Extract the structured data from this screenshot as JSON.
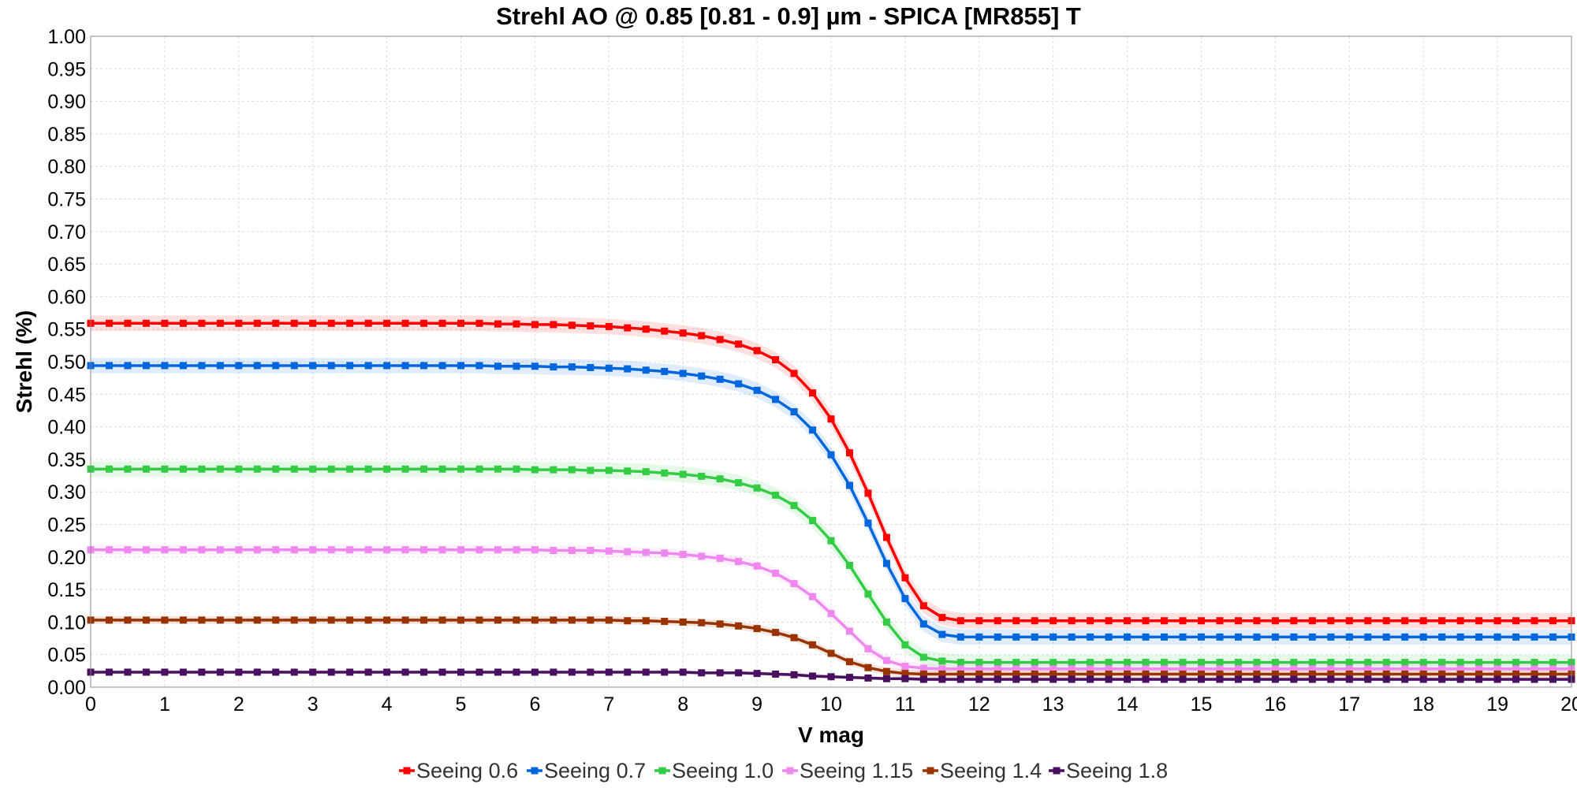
{
  "chart_data": {
    "type": "line",
    "title": "Strehl AO @ 0.85 [0.81 - 0.9] µm - SPICA [MR855] T",
    "xlabel": "V mag",
    "ylabel": "Strehl (%)",
    "xlim": [
      0,
      20
    ],
    "ylim": [
      0,
      1
    ],
    "x_ticks": [
      "0",
      "1",
      "2",
      "3",
      "4",
      "5",
      "6",
      "7",
      "8",
      "9",
      "10",
      "11",
      "12",
      "13",
      "14",
      "15",
      "16",
      "17",
      "18",
      "19",
      "20"
    ],
    "y_ticks": [
      "0.00",
      "0.05",
      "0.10",
      "0.15",
      "0.20",
      "0.25",
      "0.30",
      "0.35",
      "0.40",
      "0.45",
      "0.50",
      "0.55",
      "0.60",
      "0.65",
      "0.70",
      "0.75",
      "0.80",
      "0.85",
      "0.90",
      "0.95",
      "1.00"
    ],
    "grid": true,
    "legend_position": "bottom",
    "x": [
      0,
      0.25,
      0.5,
      0.75,
      1,
      1.25,
      1.5,
      1.75,
      2,
      2.25,
      2.5,
      2.75,
      3,
      3.25,
      3.5,
      3.75,
      4,
      4.25,
      4.5,
      4.75,
      5,
      5.25,
      5.5,
      5.75,
      6,
      6.25,
      6.5,
      6.75,
      7,
      7.25,
      7.5,
      7.75,
      8,
      8.25,
      8.5,
      8.75,
      9,
      9.25,
      9.5,
      9.75,
      10,
      10.25,
      10.5,
      10.75,
      11,
      11.25,
      11.5,
      11.75,
      12,
      12.25,
      12.5,
      12.75,
      13,
      13.25,
      13.5,
      13.75,
      14,
      14.25,
      14.5,
      14.75,
      15,
      15.25,
      15.5,
      15.75,
      16,
      16.25,
      16.5,
      16.75,
      17,
      17.25,
      17.5,
      17.75,
      18,
      18.25,
      18.5,
      18.75,
      19,
      19.25,
      19.5,
      19.75,
      20
    ],
    "series": [
      {
        "name": "Seeing 0.6",
        "color": "#ff0000",
        "band": 0.012,
        "flat": 0.559,
        "floor": 0.102,
        "knee": 10.5,
        "width": 0.33,
        "values": [
          0.559,
          0.559,
          0.559,
          0.559,
          0.559,
          0.559,
          0.559,
          0.559,
          0.559,
          0.559,
          0.559,
          0.559,
          0.559,
          0.559,
          0.559,
          0.559,
          0.559,
          0.559,
          0.559,
          0.559,
          0.559,
          0.559,
          0.558,
          0.558,
          0.557,
          0.557,
          0.556,
          0.555,
          0.554,
          0.552,
          0.55,
          0.547,
          0.544,
          0.54,
          0.534,
          0.527,
          0.517,
          0.503,
          0.482,
          0.452,
          0.412,
          0.36,
          0.298,
          0.23,
          0.168,
          0.125,
          0.107,
          0.102,
          0.102,
          0.102,
          0.102,
          0.102,
          0.102,
          0.102,
          0.102,
          0.102,
          0.102,
          0.102,
          0.102,
          0.102,
          0.102,
          0.102,
          0.102,
          0.102,
          0.102,
          0.102,
          0.102,
          0.102,
          0.102,
          0.102,
          0.102,
          0.102,
          0.102,
          0.102,
          0.102,
          0.102,
          0.102,
          0.102,
          0.102,
          0.102,
          0.102
        ]
      },
      {
        "name": "Seeing 0.7",
        "color": "#0066dd",
        "band": 0.012,
        "flat": 0.494,
        "floor": 0.077,
        "knee": 10.35,
        "width": 0.33,
        "values": [
          0.494,
          0.494,
          0.494,
          0.494,
          0.494,
          0.494,
          0.494,
          0.494,
          0.494,
          0.494,
          0.494,
          0.494,
          0.494,
          0.494,
          0.494,
          0.494,
          0.494,
          0.494,
          0.494,
          0.494,
          0.494,
          0.494,
          0.493,
          0.493,
          0.493,
          0.492,
          0.492,
          0.491,
          0.49,
          0.489,
          0.487,
          0.485,
          0.482,
          0.478,
          0.473,
          0.466,
          0.456,
          0.442,
          0.423,
          0.395,
          0.357,
          0.31,
          0.252,
          0.19,
          0.136,
          0.097,
          0.081,
          0.077,
          0.077,
          0.077,
          0.077,
          0.077,
          0.077,
          0.077,
          0.077,
          0.077,
          0.077,
          0.077,
          0.077,
          0.077,
          0.077,
          0.077,
          0.077,
          0.077,
          0.077,
          0.077,
          0.077,
          0.077,
          0.077,
          0.077,
          0.077,
          0.077,
          0.077,
          0.077,
          0.077,
          0.077,
          0.077,
          0.077,
          0.077,
          0.077,
          0.077
        ]
      },
      {
        "name": "Seeing 1.0",
        "color": "#33cc44",
        "band": 0.012,
        "flat": 0.335,
        "floor": 0.038,
        "knee": 10.2,
        "width": 0.35,
        "values": [
          0.335,
          0.335,
          0.335,
          0.335,
          0.335,
          0.335,
          0.335,
          0.335,
          0.335,
          0.335,
          0.335,
          0.335,
          0.335,
          0.335,
          0.335,
          0.335,
          0.335,
          0.335,
          0.335,
          0.335,
          0.335,
          0.335,
          0.335,
          0.335,
          0.334,
          0.334,
          0.334,
          0.333,
          0.333,
          0.332,
          0.331,
          0.329,
          0.327,
          0.324,
          0.32,
          0.314,
          0.306,
          0.295,
          0.279,
          0.256,
          0.225,
          0.187,
          0.143,
          0.1,
          0.065,
          0.046,
          0.04,
          0.038,
          0.038,
          0.038,
          0.038,
          0.038,
          0.038,
          0.038,
          0.038,
          0.038,
          0.038,
          0.038,
          0.038,
          0.038,
          0.038,
          0.038,
          0.038,
          0.038,
          0.038,
          0.038,
          0.038,
          0.038,
          0.038,
          0.038,
          0.038,
          0.038,
          0.038,
          0.038,
          0.038,
          0.038,
          0.038,
          0.038,
          0.038,
          0.038,
          0.038
        ]
      },
      {
        "name": "Seeing 1.15",
        "color": "#ee88ee",
        "band": 0.008,
        "flat": 0.211,
        "floor": 0.028,
        "knee": 10.1,
        "width": 0.35,
        "values": [
          0.211,
          0.211,
          0.211,
          0.211,
          0.211,
          0.211,
          0.211,
          0.211,
          0.211,
          0.211,
          0.211,
          0.211,
          0.211,
          0.211,
          0.211,
          0.211,
          0.211,
          0.211,
          0.211,
          0.211,
          0.211,
          0.211,
          0.211,
          0.211,
          0.211,
          0.21,
          0.21,
          0.21,
          0.209,
          0.208,
          0.207,
          0.206,
          0.204,
          0.201,
          0.198,
          0.193,
          0.186,
          0.175,
          0.159,
          0.139,
          0.113,
          0.086,
          0.059,
          0.041,
          0.032,
          0.029,
          0.028,
          0.028,
          0.028,
          0.028,
          0.028,
          0.028,
          0.028,
          0.028,
          0.028,
          0.028,
          0.028,
          0.028,
          0.028,
          0.028,
          0.028,
          0.028,
          0.028,
          0.028,
          0.028,
          0.028,
          0.028,
          0.028,
          0.028,
          0.028,
          0.028,
          0.028,
          0.028,
          0.028,
          0.028,
          0.028,
          0.028,
          0.028,
          0.028,
          0.028,
          0.028
        ]
      },
      {
        "name": "Seeing 1.4",
        "color": "#993300",
        "band": 0.006,
        "flat": 0.103,
        "floor": 0.02,
        "knee": 10.2,
        "width": 0.35,
        "values": [
          0.103,
          0.103,
          0.103,
          0.103,
          0.103,
          0.103,
          0.103,
          0.103,
          0.103,
          0.103,
          0.103,
          0.103,
          0.103,
          0.103,
          0.103,
          0.103,
          0.103,
          0.103,
          0.103,
          0.103,
          0.103,
          0.103,
          0.103,
          0.103,
          0.103,
          0.103,
          0.103,
          0.103,
          0.103,
          0.102,
          0.102,
          0.101,
          0.1,
          0.099,
          0.097,
          0.094,
          0.09,
          0.084,
          0.076,
          0.065,
          0.052,
          0.039,
          0.03,
          0.024,
          0.021,
          0.02,
          0.02,
          0.02,
          0.02,
          0.02,
          0.02,
          0.02,
          0.02,
          0.02,
          0.02,
          0.02,
          0.02,
          0.02,
          0.02,
          0.02,
          0.02,
          0.02,
          0.02,
          0.02,
          0.02,
          0.02,
          0.02,
          0.02,
          0.02,
          0.02,
          0.02,
          0.02,
          0.02,
          0.02,
          0.02,
          0.02,
          0.02,
          0.02,
          0.02,
          0.02,
          0.02
        ]
      },
      {
        "name": "Seeing 1.8",
        "color": "#4a1060",
        "band": 0.003,
        "flat": 0.023,
        "floor": 0.012,
        "knee": 10.2,
        "width": 0.4,
        "values": [
          0.023,
          0.023,
          0.023,
          0.023,
          0.023,
          0.023,
          0.023,
          0.023,
          0.023,
          0.023,
          0.023,
          0.023,
          0.023,
          0.023,
          0.023,
          0.023,
          0.023,
          0.023,
          0.023,
          0.023,
          0.023,
          0.023,
          0.023,
          0.023,
          0.023,
          0.023,
          0.023,
          0.023,
          0.023,
          0.023,
          0.023,
          0.023,
          0.023,
          0.022,
          0.022,
          0.022,
          0.021,
          0.02,
          0.019,
          0.017,
          0.016,
          0.015,
          0.014,
          0.013,
          0.013,
          0.012,
          0.012,
          0.012,
          0.012,
          0.012,
          0.012,
          0.012,
          0.012,
          0.012,
          0.012,
          0.012,
          0.012,
          0.012,
          0.012,
          0.012,
          0.012,
          0.012,
          0.012,
          0.012,
          0.012,
          0.012,
          0.012,
          0.012,
          0.012,
          0.012,
          0.012,
          0.012,
          0.012,
          0.012,
          0.012,
          0.012,
          0.012,
          0.012,
          0.012,
          0.012,
          0.012
        ]
      }
    ]
  }
}
